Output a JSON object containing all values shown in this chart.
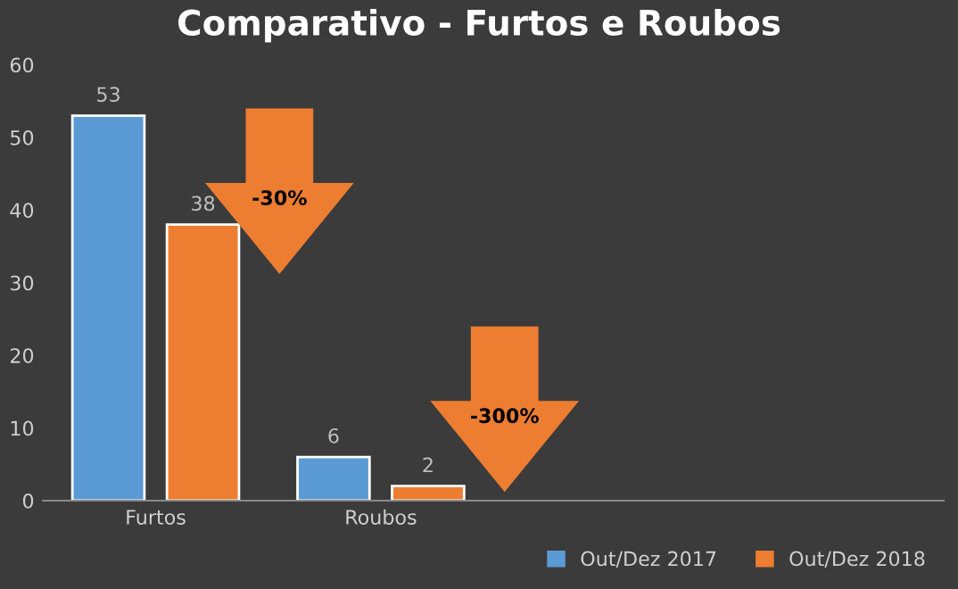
{
  "chart_data": {
    "type": "bar",
    "title": "Comparativo - Furtos e Roubos",
    "categories": [
      "Furtos",
      "Roubos",
      null,
      null
    ],
    "series": [
      {
        "name": "Out/Dez 2017",
        "color": "#5b9bd5",
        "values": [
          53,
          6,
          null,
          null
        ]
      },
      {
        "name": "Out/Dez 2018",
        "color": "#ed7d31",
        "values": [
          38,
          2,
          null,
          null
        ]
      }
    ],
    "ylim": [
      0,
      60
    ],
    "yticks": [
      0,
      10,
      20,
      30,
      40,
      50,
      60
    ],
    "data_labels": true,
    "legend": "bottom right",
    "grid": false,
    "annotations": [
      "-30%",
      "-300%"
    ]
  }
}
